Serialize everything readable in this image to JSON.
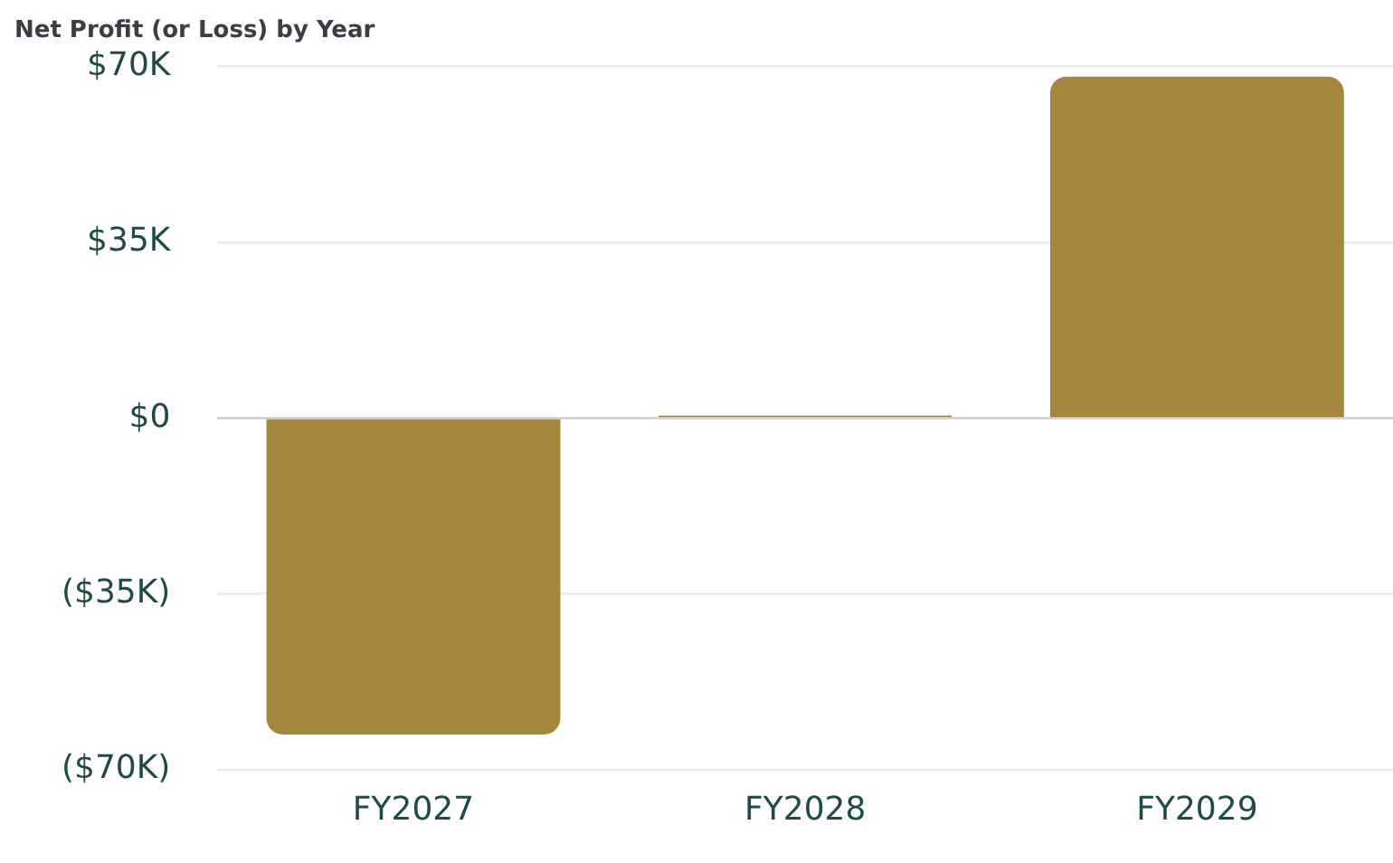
{
  "chart_data": {
    "type": "bar",
    "title": "Net Profit (or Loss) by Year",
    "categories": [
      "FY2027",
      "FY2028",
      "FY2029"
    ],
    "values": [
      -63000,
      500,
      68000
    ],
    "color": "#a3873f",
    "ylim": [
      -70000,
      70000
    ],
    "yticks": [
      {
        "value": -70000,
        "label": "($70K)"
      },
      {
        "value": -35000,
        "label": "($35K)"
      },
      {
        "value": 0,
        "label": "$0"
      },
      {
        "value": 35000,
        "label": "$35K"
      },
      {
        "value": 70000,
        "label": "$70K"
      }
    ],
    "grid": "y",
    "legend": false
  }
}
